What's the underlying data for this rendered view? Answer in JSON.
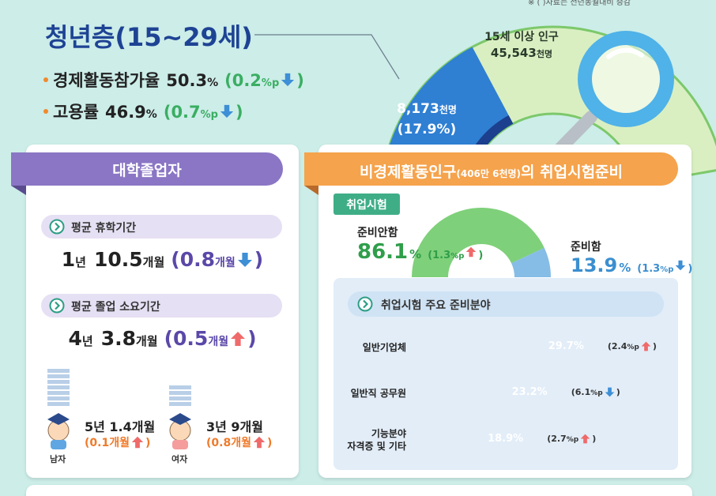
{
  "note": "※ ( )자료는 전년동월대비 증감",
  "paren": [
    "(",
    ")"
  ],
  "youth": {
    "title": "청년층(15~29세)",
    "stats": [
      {
        "label": "경제활동참가율",
        "value": "50.3",
        "unit": "%",
        "change": "0.2",
        "change_unit": "%p",
        "trend": "down"
      },
      {
        "label": "고용률",
        "value": "46.9",
        "unit": "%",
        "change": "0.7",
        "change_unit": "%p",
        "trend": "down"
      }
    ],
    "population": {
      "label": "15세 이상 인구",
      "value": "45,543",
      "unit": "천명"
    },
    "youth_population": {
      "value": "8,173",
      "unit": "천명",
      "share": "17.9%"
    }
  },
  "graduates": {
    "title": "대학졸업자",
    "items": [
      {
        "label": "평균 휴학기간",
        "parts": [
          [
            "1",
            "년"
          ],
          [
            "10.5",
            "개월"
          ]
        ],
        "change": "0.8",
        "change_unit": "개월",
        "trend": "down"
      },
      {
        "label": "평균 졸업 소요기간",
        "parts": [
          [
            "4",
            "년"
          ],
          [
            "3.8",
            "개월"
          ]
        ],
        "change": "0.5",
        "change_unit": "개월",
        "trend": "up"
      }
    ],
    "by_sex": [
      {
        "label": "남자",
        "duration": "5년 1.4개월",
        "change": "0.1개월",
        "trend": "up"
      },
      {
        "label": "여자",
        "duration": "3년 9개월",
        "change": "0.8개월",
        "trend": "up"
      }
    ]
  },
  "inactive": {
    "title": "비경제활동인구",
    "title_note": "(406만 6천명)",
    "title_tail": "의 취업시험준비",
    "tag": "취업시험",
    "exam_prep": [
      {
        "name": "준비안함",
        "value": 86.1,
        "unit": "%",
        "change": "1.3",
        "change_unit": "%p",
        "trend": "up",
        "color": "#7fd07a"
      },
      {
        "name": "준비함",
        "value": 13.9,
        "unit": "%",
        "change": "1.3",
        "change_unit": "%p",
        "trend": "down",
        "color": "#86bde6"
      }
    ],
    "fields": {
      "title": "취업시험 주요 준비분야",
      "items": [
        {
          "label": [
            "일반기업체"
          ],
          "value": 29.7,
          "value_label": "29.7%",
          "change": "2.4",
          "change_unit": "%p",
          "trend": "up",
          "color": "#b7a7dc"
        },
        {
          "label": [
            "일반직 공무원"
          ],
          "value": 23.2,
          "value_label": "23.2%",
          "change": "6.1",
          "change_unit": "%p",
          "trend": "down",
          "color": "#f2aa4c"
        },
        {
          "label": [
            "기능분야",
            "자격증 및 기타"
          ],
          "value": 18.9,
          "value_label": "18.9%",
          "change": "2.7",
          "change_unit": "%p",
          "trend": "up",
          "color": "#62cfd1"
        }
      ]
    }
  }
}
